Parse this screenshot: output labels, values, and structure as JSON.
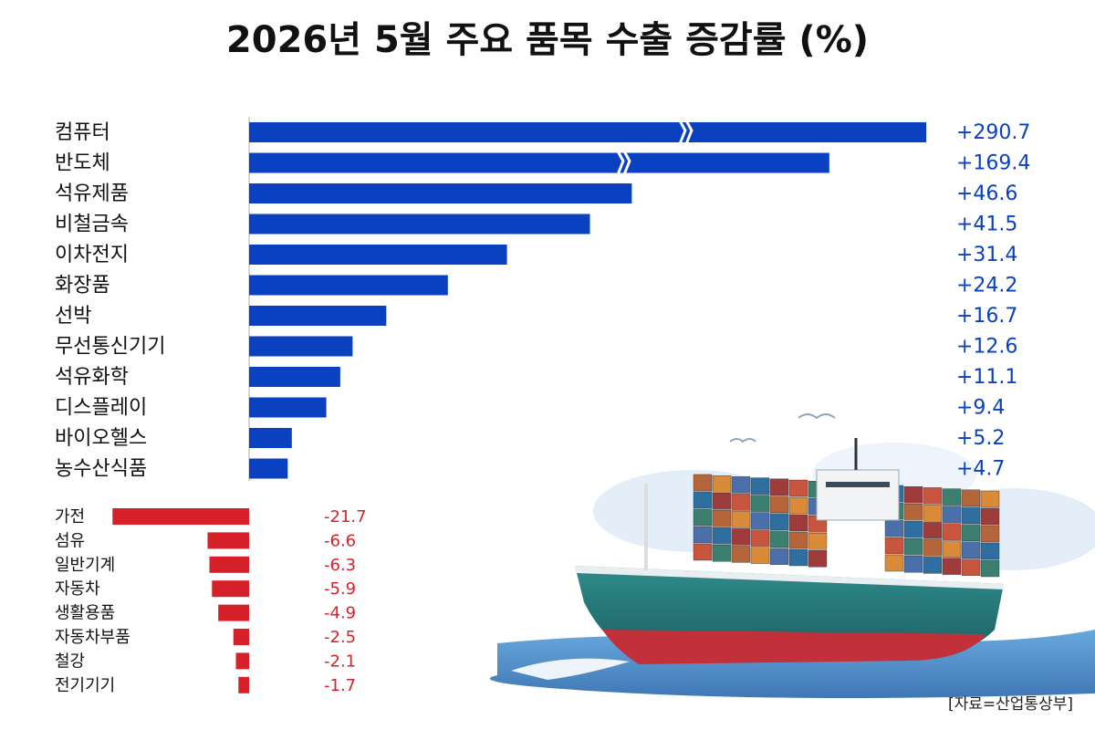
{
  "chart_data": {
    "type": "bar",
    "orientation": "horizontal",
    "title": "2026년 5월 주요 품목 수출 증감률 (%)",
    "categories": [
      "컴퓨터",
      "반도체",
      "석유제품",
      "비철금속",
      "이차전지",
      "화장품",
      "선박",
      "무선통신기기",
      "석유화학",
      "디스플레이",
      "바이오헬스",
      "농수산식품",
      "가전",
      "섬유",
      "일반기계",
      "자동차",
      "생활용품",
      "자동차부품",
      "철강",
      "전기기기"
    ],
    "values": [
      290.7,
      169.4,
      46.6,
      41.5,
      31.4,
      24.2,
      16.7,
      12.6,
      11.1,
      9.4,
      5.2,
      4.7,
      -21.7,
      -6.6,
      -6.3,
      -5.9,
      -4.9,
      -2.5,
      -2.1,
      -1.7
    ],
    "value_labels": [
      "+290.7",
      "+169.4",
      "+46.6",
      "+41.5",
      "+31.4",
      "+24.2",
      "+16.7",
      "+12.6",
      "+11.1",
      "+9.4",
      "+5.2",
      "+4.7",
      "-21.7",
      "-6.6",
      "-6.3",
      "-5.9",
      "-4.9",
      "-2.5",
      "-2.1",
      "-1.7"
    ],
    "colors": {
      "positive": "#0a41c0",
      "negative": "#d7212a"
    },
    "source": "[자료=산업통상부]"
  }
}
